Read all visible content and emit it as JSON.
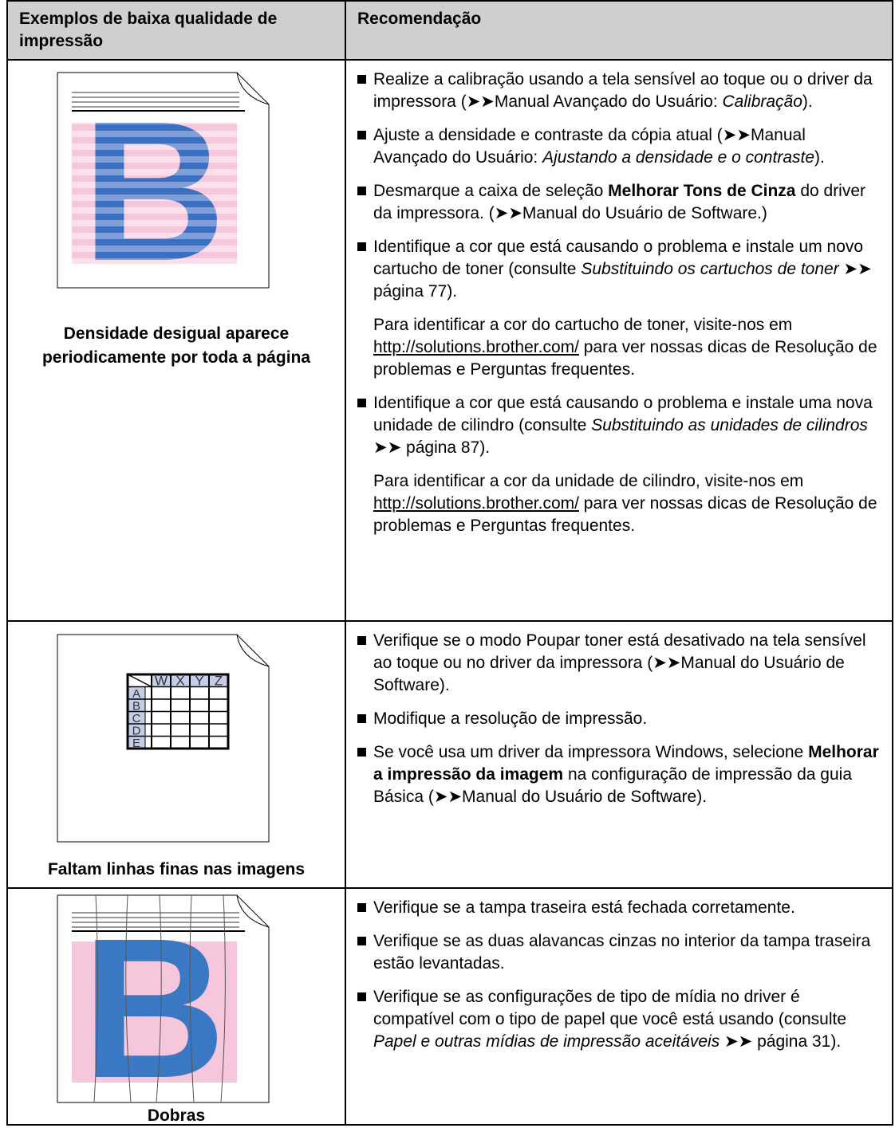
{
  "header": {
    "col1": "Exemplos de baixa qualidade de impressão",
    "col2": "Recomendação"
  },
  "rows": [
    {
      "figure": {
        "letter": "B"
      },
      "caption": "Densidade desigual aparece periodicamente por toda a página",
      "items": [
        [
          [
            "Realize a calibração usando a tela sensível ao toque ou o driver da impressora (➤➤Manual Avançado do Usuário: ",
            {
              "italic": "Calibração"
            },
            ")."
          ]
        ],
        [
          [
            "Ajuste a densidade e contraste da cópia atual (➤➤Manual Avançado do Usuário: ",
            {
              "italic": "Ajustando a densidade e o contraste"
            },
            ")."
          ]
        ],
        [
          [
            "Desmarque a caixa de seleção ",
            {
              "bold": "Melhorar Tons de Cinza"
            },
            " do driver da impressora. (➤➤Manual do Usuário de Software.)"
          ]
        ],
        [
          [
            "Identifique a cor que está causando o problema e instale um novo cartucho de toner (consulte ",
            {
              "italic": "Substituindo os cartuchos de toner"
            },
            " ➤➤ página 77)."
          ],
          [
            "Para identificar a cor do cartucho de toner, visite-nos em ",
            {
              "link": "http://solutions.brother.com/"
            },
            " para ver nossas dicas de Resolução de problemas e Perguntas frequentes."
          ]
        ],
        [
          [
            "Identifique a cor que está causando o problema e instale uma nova unidade de cilindro (consulte ",
            {
              "italic": "Substituindo as unidades de cilindros"
            },
            " ➤➤ página 87)."
          ],
          [
            "Para identificar a cor da unidade de cilindro, visite-nos em ",
            {
              "link": "http://solutions.brother.com/"
            },
            " para ver nossas dicas de Resolução de problemas e Perguntas frequentes."
          ]
        ]
      ]
    },
    {
      "figure": {
        "columns": [
          "W",
          "X",
          "Y",
          "Z"
        ],
        "rows": [
          "A",
          "B",
          "C",
          "D",
          "E"
        ]
      },
      "caption": "Faltam linhas finas nas imagens",
      "items": [
        [
          [
            "Verifique se o modo Poupar toner está desativado na tela sensível ao toque ou no driver da impressora (➤➤Manual do Usuário de Software)."
          ]
        ],
        [
          [
            "Modifique a resolução de impressão."
          ]
        ],
        [
          [
            "Se você usa um driver da impressora Windows, selecione ",
            {
              "bold": "Melhorar a impressão da imagem"
            },
            " na configuração de impressão da guia Básica (➤➤Manual do Usuário de Software)."
          ]
        ]
      ]
    },
    {
      "figure": {
        "letter": "B"
      },
      "caption": "Dobras",
      "items": [
        [
          [
            "Verifique se a tampa traseira está fechada corretamente."
          ]
        ],
        [
          [
            "Verifique se as duas alavancas cinzas no interior da tampa traseira estão levantadas."
          ]
        ],
        [
          [
            "Verifique se as configurações de tipo de mídia no driver é compatível com o tipo de papel que você está usando (consulte ",
            {
              "italic": "Papel e outras mídias de impressão aceitáveis"
            },
            " ➤➤ página 31)."
          ]
        ]
      ]
    }
  ]
}
